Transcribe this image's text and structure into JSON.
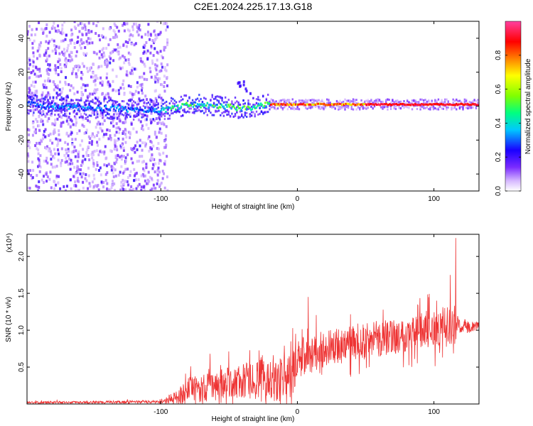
{
  "chart_data": [
    {
      "type": "heatmap",
      "title": "C2E1.2024.225.17.13.G18",
      "xlabel": "Height of straight line (km)",
      "ylabel": "Frequency (Hz)",
      "xlim": [
        -198,
        133
      ],
      "ylim": [
        -50,
        50
      ],
      "xticks": [
        -100,
        0,
        100
      ],
      "yticks": [
        -40,
        -20,
        0,
        20,
        40
      ],
      "colorbar": {
        "label": "Normalized spectral amplitude",
        "range": [
          0.0,
          1.0
        ],
        "ticks": [
          "0.0",
          "0.2",
          "0.4",
          "0.6",
          "0.8"
        ],
        "colors": [
          "#ffffff",
          "#d6b8ff",
          "#7a2bff",
          "#1a00ff",
          "#00c8ff",
          "#00ff80",
          "#80ff00",
          "#ffff00",
          "#ff8000",
          "#ff0000",
          "#ff40a0"
        ]
      },
      "ridge": {
        "description_points": [
          {
            "x": -190,
            "f": 0.0
          },
          {
            "x": -100,
            "f": -2.5
          },
          {
            "x": -80,
            "f": 1.0
          },
          {
            "x": -60,
            "f": 0.5
          },
          {
            "x": -40,
            "f": -1.5
          },
          {
            "x": -20,
            "f": 1.0
          },
          {
            "x": 0,
            "f": 1.0
          },
          {
            "x": 50,
            "f": 1.0
          },
          {
            "x": 133,
            "f": 1.0
          }
        ]
      }
    },
    {
      "type": "line",
      "xlabel": "Height of straight line (km)",
      "ylabel": "SNR (10 * v/v)",
      "yscale_label": "(x10⁴)",
      "xlim": [
        -198,
        133
      ],
      "ylim": [
        0,
        2.3
      ],
      "xticks": [
        -100,
        0,
        100
      ],
      "yticks": [
        "0.5",
        "1.0",
        "1.5",
        "2.0"
      ],
      "color": "#ee3333",
      "envelope": [
        {
          "x": -198,
          "base": 0.02,
          "amp": 0.02
        },
        {
          "x": -100,
          "base": 0.03,
          "amp": 0.03
        },
        {
          "x": -90,
          "base": 0.08,
          "amp": 0.12
        },
        {
          "x": -80,
          "base": 0.18,
          "amp": 0.25
        },
        {
          "x": -60,
          "base": 0.25,
          "amp": 0.3
        },
        {
          "x": -40,
          "base": 0.3,
          "amp": 0.35
        },
        {
          "x": -20,
          "base": 0.35,
          "amp": 0.4
        },
        {
          "x": -5,
          "base": 0.35,
          "amp": 0.45
        },
        {
          "x": 0,
          "base": 0.6,
          "amp": 0.4
        },
        {
          "x": 20,
          "base": 0.75,
          "amp": 0.35
        },
        {
          "x": 50,
          "base": 0.85,
          "amp": 0.35
        },
        {
          "x": 80,
          "base": 0.95,
          "amp": 0.35
        },
        {
          "x": 110,
          "base": 1.05,
          "amp": 0.4
        },
        {
          "x": 120,
          "base": 1.05,
          "amp": 0.15
        },
        {
          "x": 133,
          "base": 1.05,
          "amp": 0.08
        }
      ],
      "peaks": [
        {
          "x": 116,
          "y": 2.25
        },
        {
          "x": 112,
          "y": 1.75
        },
        {
          "x": 8,
          "y": 1.45
        },
        {
          "x": 102,
          "y": 1.4
        },
        {
          "x": -64,
          "y": 0.68
        }
      ]
    }
  ]
}
